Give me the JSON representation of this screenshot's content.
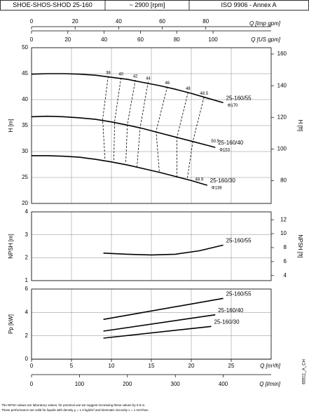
{
  "header": [
    "SHOE-SHOS-SHOD 25-160",
    "~ 2900 [rpm]",
    "ISO 9906 - Annex A"
  ],
  "notes": [
    "The NPSH values are laboratory values; for practical use we suggest increasing these values by 0.5 m.",
    "These performance are valid for liquids with density ρ = 1.0 kg/dm³ and kinematic viscosity ν = 1 mm²/sec."
  ],
  "code": "65511_A_CH",
  "chart_data": [
    {
      "type": "axis",
      "label": "Q [Imp gpm]",
      "xlim": [
        0,
        110
      ],
      "xticks": [
        0,
        20,
        40,
        60,
        80
      ]
    },
    {
      "type": "axis",
      "label": "Q [US gpm]",
      "xlim": [
        0,
        132
      ],
      "xticks": [
        0,
        20,
        40,
        60,
        80,
        100
      ]
    },
    {
      "type": "line",
      "ylabel": "H [m]",
      "y2label": "H [ft]",
      "xlim": [
        0,
        30
      ],
      "ylim": [
        20,
        50
      ],
      "yticks": [
        20,
        25,
        30,
        35,
        40,
        45,
        50
      ],
      "y2lim": [
        65.6,
        164
      ],
      "y2ticks": [
        80,
        100,
        120,
        140,
        160
      ],
      "grid": true,
      "color": "#000000",
      "series": [
        {
          "name": "25-160/55",
          "diameter": "Φ170",
          "x": [
            0,
            2,
            4,
            6,
            8,
            10,
            12,
            14,
            16,
            18,
            20,
            22,
            24
          ],
          "values": [
            44.9,
            45.0,
            45.0,
            44.9,
            44.7,
            44.3,
            43.9,
            43.3,
            42.7,
            42.0,
            41.2,
            40.3,
            39.4
          ]
        },
        {
          "name": "25-160/40",
          "diameter": "Φ153",
          "x": [
            0,
            2,
            4,
            6,
            8,
            10,
            12,
            14,
            16,
            18,
            20,
            22,
            23
          ],
          "values": [
            36.7,
            36.8,
            36.7,
            36.5,
            36.2,
            35.7,
            35.1,
            34.4,
            33.6,
            32.8,
            32.0,
            31.2,
            30.8
          ]
        },
        {
          "name": "25-160/30",
          "diameter": "Φ138",
          "x": [
            0,
            2,
            4,
            6,
            8,
            10,
            12,
            14,
            16,
            18,
            20,
            22
          ],
          "values": [
            29.2,
            29.2,
            29.1,
            28.9,
            28.5,
            28.0,
            27.4,
            26.7,
            26.0,
            25.2,
            24.4,
            23.5
          ]
        }
      ],
      "efficiency": [
        {
          "name": "38",
          "x": [
            9.6,
            8.9,
            9.2
          ],
          "values": [
            44.5,
            36.2,
            28.4
          ]
        },
        {
          "name": "40",
          "x": [
            11.2,
            10.4,
            10.3
          ],
          "values": [
            44.2,
            35.8,
            28.1
          ]
        },
        {
          "name": "42",
          "x": [
            13.0,
            12.0,
            11.8
          ],
          "values": [
            43.8,
            35.2,
            27.7
          ]
        },
        {
          "name": "44",
          "x": [
            14.6,
            13.6,
            13.2
          ],
          "values": [
            43.4,
            34.6,
            27.1
          ]
        },
        {
          "name": "46",
          "x": [
            17.0,
            15.6,
            16.0
          ],
          "values": [
            42.5,
            33.9,
            26.0
          ]
        },
        {
          "name": "48",
          "x": [
            19.6,
            18.2,
            18.2
          ],
          "values": [
            41.4,
            32.7,
            25.2
          ]
        },
        {
          "name": "48.5",
          "x": [
            21.6,
            20.2,
            19.5
          ],
          "values": [
            40.5,
            32.0,
            24.8
          ]
        }
      ],
      "annotations": [
        {
          "text": "50.5",
          "x": 23.0,
          "y": 32.0
        },
        {
          "text": "48.9",
          "x": 21.0,
          "y": 24.6
        }
      ]
    },
    {
      "type": "line",
      "ylabel": "NPSH [m]",
      "y2label": "NPSH [ft]",
      "xlim": [
        0,
        30
      ],
      "ylim": [
        1,
        4
      ],
      "yticks": [
        1,
        2,
        3,
        4
      ],
      "y2lim": [
        3.28,
        13.12
      ],
      "y2ticks": [
        4,
        6,
        8,
        10,
        12
      ],
      "grid": true,
      "color": "#000000",
      "series": [
        {
          "name": "25-160/55",
          "x": [
            9,
            12,
            15,
            18,
            21,
            24
          ],
          "values": [
            2.2,
            2.15,
            2.12,
            2.15,
            2.3,
            2.55
          ]
        }
      ]
    },
    {
      "type": "line",
      "ylabel": "Pp [kW]",
      "xlim": [
        0,
        30
      ],
      "ylim": [
        0,
        6
      ],
      "yticks": [
        0,
        2,
        4,
        6
      ],
      "grid": true,
      "color": "#000000",
      "series": [
        {
          "name": "25-160/55",
          "x": [
            9,
            24
          ],
          "values": [
            3.4,
            5.2
          ]
        },
        {
          "name": "25-160/40",
          "x": [
            9,
            23
          ],
          "values": [
            2.4,
            3.8
          ]
        },
        {
          "name": "25-160/30",
          "x": [
            9,
            22.5
          ],
          "values": [
            1.8,
            2.8
          ]
        }
      ]
    },
    {
      "type": "axis",
      "label": "Q [m³/h]",
      "xlim": [
        0,
        30
      ],
      "xticks": [
        0,
        5,
        10,
        15,
        20,
        25
      ]
    },
    {
      "type": "axis",
      "label": "Q [l/min]",
      "xlim": [
        0,
        500
      ],
      "xticks": [
        0,
        100,
        200,
        300,
        400
      ]
    }
  ]
}
